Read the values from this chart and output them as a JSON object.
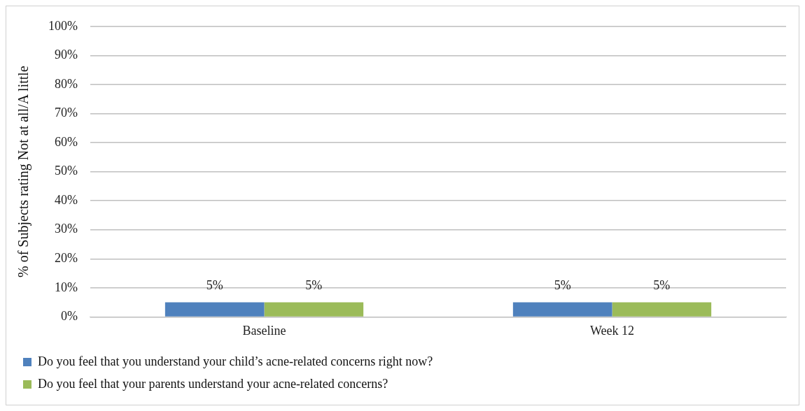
{
  "chart_data": {
    "type": "bar",
    "ylabel": "% of Subjects rating Not at all/A little",
    "categories": [
      "Baseline",
      "Week 12"
    ],
    "series": [
      {
        "name": "Do you feel that you understand your child’s acne-related concerns right now?",
        "color": "#4f81bd",
        "values": [
          5,
          5
        ],
        "value_labels": [
          "5%",
          "5%"
        ]
      },
      {
        "name": "Do you feel that your parents understand your acne-related concerns?",
        "color": "#9bbb59",
        "values": [
          5,
          5
        ],
        "value_labels": [
          "5%",
          "5%"
        ]
      }
    ],
    "ylim": [
      0,
      100
    ],
    "yticks": [
      {
        "value": 0,
        "label": "0%"
      },
      {
        "value": 10,
        "label": "10%"
      },
      {
        "value": 20,
        "label": "20%"
      },
      {
        "value": 30,
        "label": "30%"
      },
      {
        "value": 40,
        "label": "40%"
      },
      {
        "value": 50,
        "label": "50%"
      },
      {
        "value": 60,
        "label": "60%"
      },
      {
        "value": 70,
        "label": "70%"
      },
      {
        "value": 80,
        "label": "80%"
      },
      {
        "value": 90,
        "label": "90%"
      },
      {
        "value": 100,
        "label": "100%"
      }
    ],
    "grid": "y",
    "legend": "bottom"
  }
}
